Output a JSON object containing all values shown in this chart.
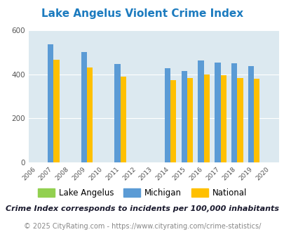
{
  "title": "Lake Angelus Violent Crime Index",
  "all_years": [
    2006,
    2007,
    2008,
    2009,
    2010,
    2011,
    2012,
    2013,
    2014,
    2015,
    2016,
    2017,
    2018,
    2019,
    2020
  ],
  "bar_years": [
    2007,
    2009,
    2011,
    2014,
    2015,
    2016,
    2017,
    2018,
    2019
  ],
  "michigan": [
    535,
    500,
    447,
    428,
    415,
    462,
    453,
    450,
    437
  ],
  "national": [
    467,
    430,
    390,
    372,
    383,
    400,
    397,
    382,
    378
  ],
  "michigan_color": "#5b9bd5",
  "national_color": "#ffc000",
  "lake_angelus_color": "#92d050",
  "plot_bg": "#dce9f0",
  "title_color": "#1c7bbf",
  "ylim": [
    0,
    600
  ],
  "yticks": [
    0,
    200,
    400,
    600
  ],
  "bar_width": 0.7,
  "title_fontsize": 11,
  "legend_fontsize": 8.5,
  "footer_text": "Crime Index corresponds to incidents per 100,000 inhabitants",
  "copyright_text": "© 2025 CityRating.com - https://www.cityrating.com/crime-statistics/",
  "footer_fontsize": 8,
  "copyright_fontsize": 7
}
